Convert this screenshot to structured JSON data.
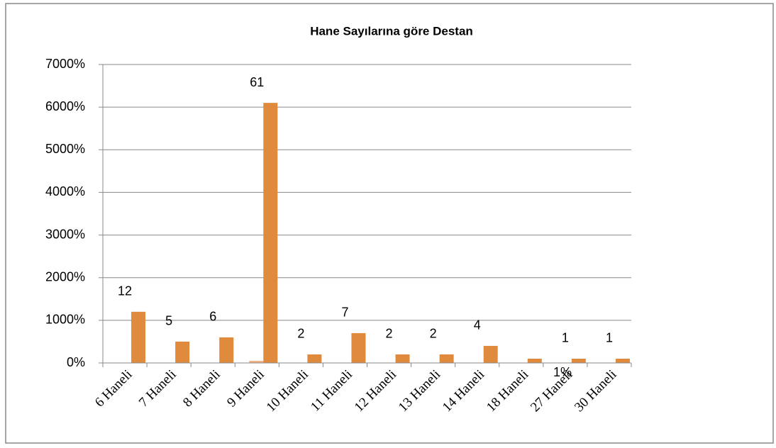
{
  "chart_data": {
    "type": "bar",
    "title": "Hane Sayılarına göre  Destan",
    "categories": [
      "6 Haneli",
      "7 Haneli",
      "8 Haneli",
      "9 Haneli",
      "10 Haneli",
      "11 Haneli",
      "12 Haneli",
      "13 Haneli",
      "14 Haneli",
      "18 Haneli",
      "27 Haneli",
      "30 Haneli"
    ],
    "series": [
      {
        "color": "#f4b183",
        "values": [
          null,
          null,
          null,
          50,
          null,
          null,
          null,
          null,
          null,
          null,
          null,
          null
        ]
      },
      {
        "color": "#e08a3e",
        "values": [
          1200,
          500,
          600,
          6100,
          200,
          700,
          200,
          200,
          400,
          100,
          100,
          100
        ]
      }
    ],
    "data_labels": [
      "12",
      "5",
      "6",
      "61",
      "2",
      "7",
      "2",
      "2",
      "4",
      null,
      "1",
      "1"
    ],
    "annotation": "1%",
    "ylim": [
      0,
      7000
    ],
    "yticks": [
      {
        "value": 0,
        "label": "0%"
      },
      {
        "value": 1000,
        "label": "1000%"
      },
      {
        "value": 2000,
        "label": "2000%"
      },
      {
        "value": 3000,
        "label": "3000%"
      },
      {
        "value": 4000,
        "label": "4000%"
      },
      {
        "value": 5000,
        "label": "5000%"
      },
      {
        "value": 6000,
        "label": "6000%"
      },
      {
        "value": 7000,
        "label": "7000%"
      }
    ],
    "grid": true
  }
}
